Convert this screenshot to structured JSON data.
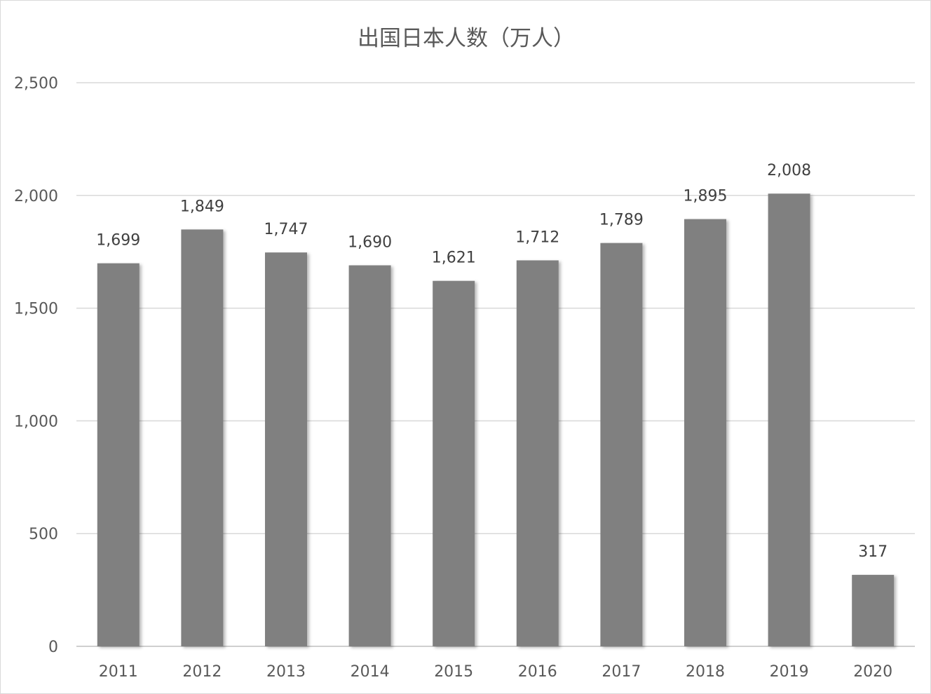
{
  "chart_data": {
    "type": "bar",
    "title": "出国日本人数（万人）",
    "categories": [
      "2011",
      "2012",
      "2013",
      "2014",
      "2015",
      "2016",
      "2017",
      "2018",
      "2019",
      "2020"
    ],
    "series": [
      {
        "values": [
          1699,
          1849,
          1747,
          1690,
          1621,
          1712,
          1789,
          1895,
          2008,
          317
        ],
        "labels": [
          "1,699",
          "1,849",
          "1,747",
          "1,690",
          "1,621",
          "1,712",
          "1,789",
          "1,895",
          "2,008",
          "317"
        ]
      }
    ],
    "yticks": [
      0,
      500,
      1000,
      1500,
      2000,
      2500
    ],
    "ytick_labels": [
      "0",
      "500",
      "1,000",
      "1,500",
      "2,000",
      "2,500"
    ],
    "ylim": [
      0,
      2500
    ],
    "xlabel": "",
    "ylabel": "",
    "grid": true,
    "legend": "none",
    "bar_color": "#808080",
    "gridline_color": "#d9d9d9",
    "text_color": "#595959"
  }
}
